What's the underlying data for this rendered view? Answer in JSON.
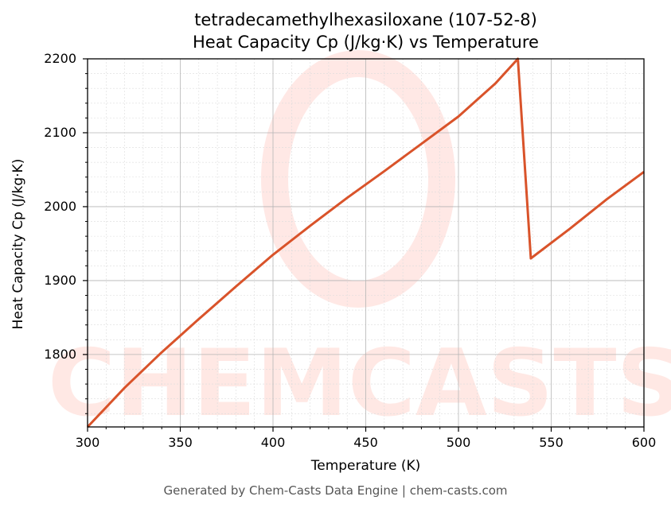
{
  "chart_data": {
    "type": "line",
    "title": "tetradecamethylhexasiloxane (107-52-8)",
    "subtitle": "Heat Capacity Cp (J/kg·K) vs Temperature",
    "xlabel": "Temperature (K)",
    "ylabel": "Heat Capacity Cp (J/kg·K)",
    "xlim": [
      300,
      600
    ],
    "ylim": [
      1702,
      2200
    ],
    "xticks": [
      "300",
      "350",
      "400",
      "450",
      "500",
      "550",
      "600"
    ],
    "yticks": [
      "1800",
      "1900",
      "2000",
      "2100",
      "2200"
    ],
    "grid": true,
    "series": [
      {
        "color": "#d9532a",
        "x": [
          300,
          320,
          340,
          360,
          380,
          400,
          420,
          440,
          460,
          480,
          500,
          520,
          532,
          539,
          560,
          580,
          600
        ],
        "y": [
          1702,
          1755,
          1803,
          1848,
          1892,
          1935,
          1974,
          2012,
          2048,
          2085,
          2122,
          2167,
          2200,
          1930,
          1970,
          2010,
          2047
        ]
      }
    ]
  },
  "watermark": "CHEMCASTS",
  "footer": "Generated by Chem-Casts Data Engine | chem-casts.com"
}
